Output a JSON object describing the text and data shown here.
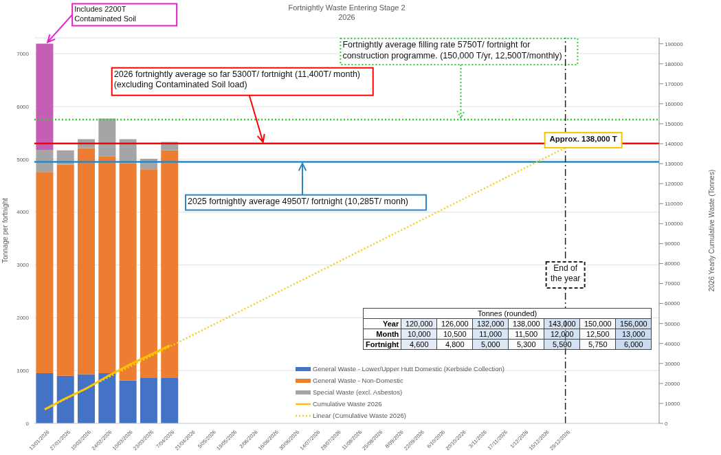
{
  "chart_data": [
    {
      "type": "bar",
      "title": "Fortnightly Waste Entering Stage 2",
      "subtitle": "2026",
      "ylabel": "Tonnage per fortnight",
      "y2label": "2026 Yearly Cumulative Waste (Tonnes)",
      "categories": [
        "13/01/2026",
        "27/01/2026",
        "10/02/2026",
        "24/02/2026",
        "10/03/2026",
        "23/03/2026",
        "7/04/2026",
        "21/04/2026",
        "5/05/2026",
        "19/05/2026",
        "2/06/2026",
        "16/06/2026",
        "30/06/2026",
        "14/07/2026",
        "28/07/2026",
        "11/08/2026",
        "25/08/2026",
        "8/09/2026",
        "22/09/2026",
        "6/10/2026",
        "20/10/2026",
        "3/11/2026",
        "17/11/2026",
        "1/12/2026",
        "15/12/2026",
        "29/12/2026",
        null,
        null,
        null,
        null
      ],
      "stacked": true,
      "series": [
        {
          "name": "General Waste - Lower/Upper Hutt Domestic (Kerbside Collection)",
          "color": "#4472c4",
          "values": [
            950,
            900,
            930,
            950,
            810,
            860,
            860,
            null,
            null,
            null,
            null,
            null,
            null,
            null,
            null,
            null,
            null,
            null,
            null,
            null,
            null,
            null,
            null,
            null,
            null,
            null,
            null,
            null,
            null,
            null
          ]
        },
        {
          "name": "General Waste - Non-Domestic",
          "color": "#ed7d31",
          "values": [
            3810,
            4000,
            4280,
            4110,
            4120,
            3950,
            4310,
            null,
            null,
            null,
            null,
            null,
            null,
            null,
            null,
            null,
            null,
            null,
            null,
            null,
            null,
            null,
            null,
            null,
            null,
            null,
            null,
            null,
            null,
            null
          ]
        },
        {
          "name": "Special Waste (excl. Asbestos)",
          "color": "#a5a5a5",
          "values": [
            420,
            270,
            170,
            710,
            450,
            200,
            160,
            null,
            null,
            null,
            null,
            null,
            null,
            null,
            null,
            null,
            null,
            null,
            null,
            null,
            null,
            null,
            null,
            null,
            null,
            null,
            null,
            null,
            null,
            null
          ]
        },
        {
          "color": "#c55fb5",
          "values": [
            2010,
            null,
            null,
            null,
            null,
            null,
            null,
            null,
            null,
            null,
            null,
            null,
            null,
            null,
            null,
            null,
            null,
            null,
            null,
            null,
            null,
            null,
            null,
            null,
            null,
            null,
            null,
            null,
            null,
            null
          ]
        },
        {
          "name": "Cumulative Waste 2026",
          "type": "line",
          "axis": "y2",
          "color": "#ffc000",
          "values": [
            7000,
            12500,
            17500,
            23500,
            29000,
            34000,
            39000,
            null,
            null,
            null,
            null,
            null,
            null,
            null,
            null,
            null,
            null,
            null,
            null,
            null,
            null,
            null,
            null,
            null,
            null,
            null,
            null,
            null,
            null,
            null
          ]
        },
        {
          "name": "Linear (Cumulative Waste 2026)",
          "type": "line",
          "axis": "y2",
          "color": "#f0d020",
          "line_style": "dotted",
          "x": [
            "13/01/2026",
            "29/12/2026"
          ],
          "values": [
            7000,
            138000
          ]
        }
      ],
      "ylim": [
        0,
        7300
      ],
      "yticks": [
        0,
        1000,
        2000,
        3000,
        4000,
        5000,
        6000,
        7000
      ],
      "y2lim": [
        0,
        193000
      ],
      "y2ticks": [
        0,
        10000,
        20000,
        30000,
        40000,
        50000,
        60000,
        70000,
        80000,
        90000,
        100000,
        110000,
        120000,
        130000,
        140000,
        150000,
        160000,
        170000,
        180000,
        190000
      ],
      "grid": "y",
      "legend": "bottom",
      "marker": "none",
      "ref_lines": [
        {
          "axis": "y",
          "value": 5750,
          "label": "Fortnightly average filling rate 5750T/ fortnight for construction programme. (150,000 T/yr, 12,500T/monthly)",
          "color": "#33cc33",
          "line_style": "dotted"
        },
        {
          "axis": "y",
          "value": 5300,
          "label": "2026 fortnightly average so far 5300T/ fortnight (11,400T/ month) (excluding Contaminated Soil load)",
          "color": "#ff0000",
          "line_style": "solid"
        },
        {
          "axis": "y",
          "value": 4950,
          "label": "2025 fortnightly average 4950T/ fortnight (10,285T/ monh)",
          "color": "#2e86c1",
          "line_style": "solid"
        },
        {
          "axis": "x",
          "value": "29/12/2026",
          "label": "End of the year",
          "color": "#222222",
          "line_style": "dashed"
        }
      ],
      "annotations": [
        {
          "text": "Includes 2200T Contaminated Soil",
          "x": "13/01/2026",
          "y": 7190
        },
        "Approx. 138,000 T"
      ]
    },
    {
      "type": "heatmap",
      "title": "Tonnes (rounded)",
      "categories": [
        null,
        null,
        null,
        null,
        null,
        null,
        null
      ],
      "y_categories": [
        "Year",
        "Month",
        "Fortnight"
      ],
      "cells": [
        [
          120000,
          126000,
          132000,
          138000,
          143000,
          150000,
          156000
        ],
        [
          10000,
          10500,
          11000,
          11500,
          12000,
          12500,
          13000
        ],
        [
          4600,
          4800,
          5000,
          5300,
          5500,
          5750,
          6000
        ]
      ],
      "cell_labels": [
        [
          "120,000",
          "126,000",
          "132,000",
          "138,000",
          "143,000",
          "150,000",
          "156,000"
        ],
        [
          "10,000",
          "10,500",
          "11,000",
          "11,500",
          "12,000",
          "12,500",
          "13,000"
        ],
        [
          "4,600",
          "4,800",
          "5,000",
          "5,300",
          "5,500",
          "5,750",
          "6,000"
        ]
      ]
    }
  ]
}
